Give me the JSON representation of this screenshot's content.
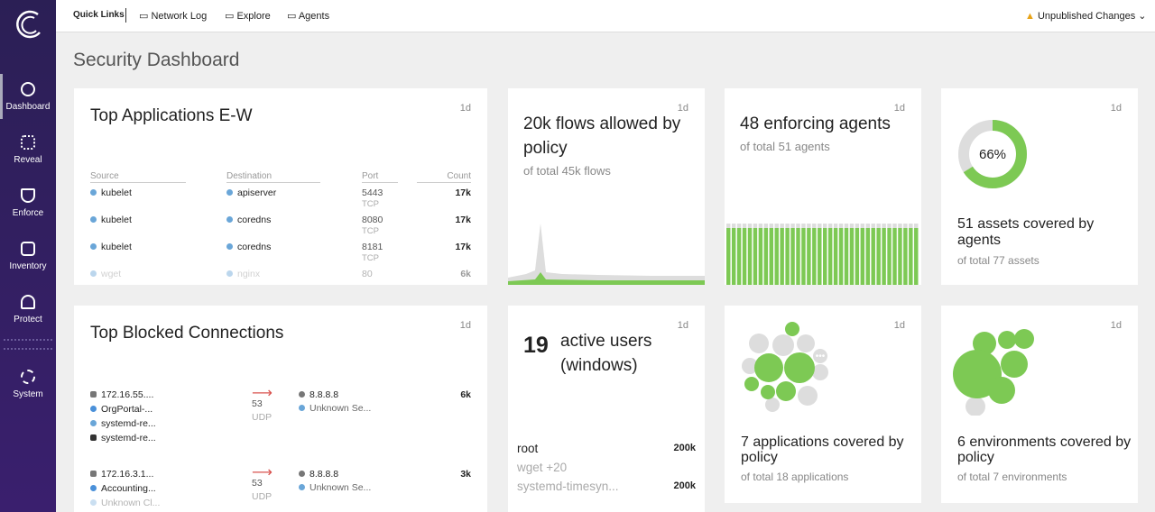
{
  "sidebar": {
    "items": [
      "Dashboard",
      "Reveal",
      "Enforce",
      "Inventory",
      "Protect",
      "System"
    ]
  },
  "topbar": {
    "quick_links": "Quick Links",
    "links": [
      "Network Log",
      "Explore",
      "Agents"
    ],
    "unpublished": "Unpublished Changes"
  },
  "page_title": "Security Dashboard",
  "cards": {
    "top_apps": {
      "title": "Top Applications E-W",
      "period": "1d",
      "columns": [
        "Source",
        "Destination",
        "Port",
        "Count"
      ],
      "rows": [
        [
          "kubelet",
          "apiserver",
          "5443",
          "TCP",
          "17k"
        ],
        [
          "kubelet",
          "coredns",
          "8080",
          "TCP",
          "17k"
        ],
        [
          "kubelet",
          "coredns",
          "8181",
          "TCP",
          "17k"
        ],
        [
          "wget",
          "nginx",
          "80",
          "",
          "6k"
        ]
      ]
    },
    "flows": {
      "period": "1d",
      "title": "20k flows allowed by policy",
      "subtitle": "of total 45k flows"
    },
    "agents": {
      "period": "1d",
      "title": "48 enforcing agents",
      "subtitle": "of total 51 agents"
    },
    "assets": {
      "period": "1d",
      "percent": 66,
      "percent_label": "66%",
      "title": "51 assets covered by agents",
      "subtitle": "of total 77 assets"
    },
    "blocked": {
      "title": "Top Blocked Connections",
      "period": "1d",
      "rows": [
        {
          "source": [
            "172.16.55....",
            "OrgPortal-...",
            "systemd-re...",
            "systemd-re..."
          ],
          "port": "53",
          "protocol": "UDP",
          "destination": [
            "8.8.8.8",
            "Unknown Se..."
          ],
          "count": "6k"
        },
        {
          "source": [
            "172.16.3.1...",
            "Accounting...",
            "Unknown Cl..."
          ],
          "port": "53",
          "protocol": "UDP",
          "destination": [
            "8.8.8.8",
            "Unknown Se..."
          ],
          "count": "3k"
        }
      ]
    },
    "users": {
      "period": "1d",
      "count": "19",
      "title": "active users (windows)",
      "rows": [
        [
          "root",
          "200k"
        ],
        [
          "wget +20",
          ""
        ],
        [
          "systemd-timesyn...",
          "200k"
        ]
      ]
    },
    "applications": {
      "period": "1d",
      "title": "7 applications covered by policy",
      "subtitle": "of total 18 applications"
    },
    "environments": {
      "period": "1d",
      "title": "6 environments covered by policy",
      "subtitle": "of total 7 environments"
    }
  }
}
